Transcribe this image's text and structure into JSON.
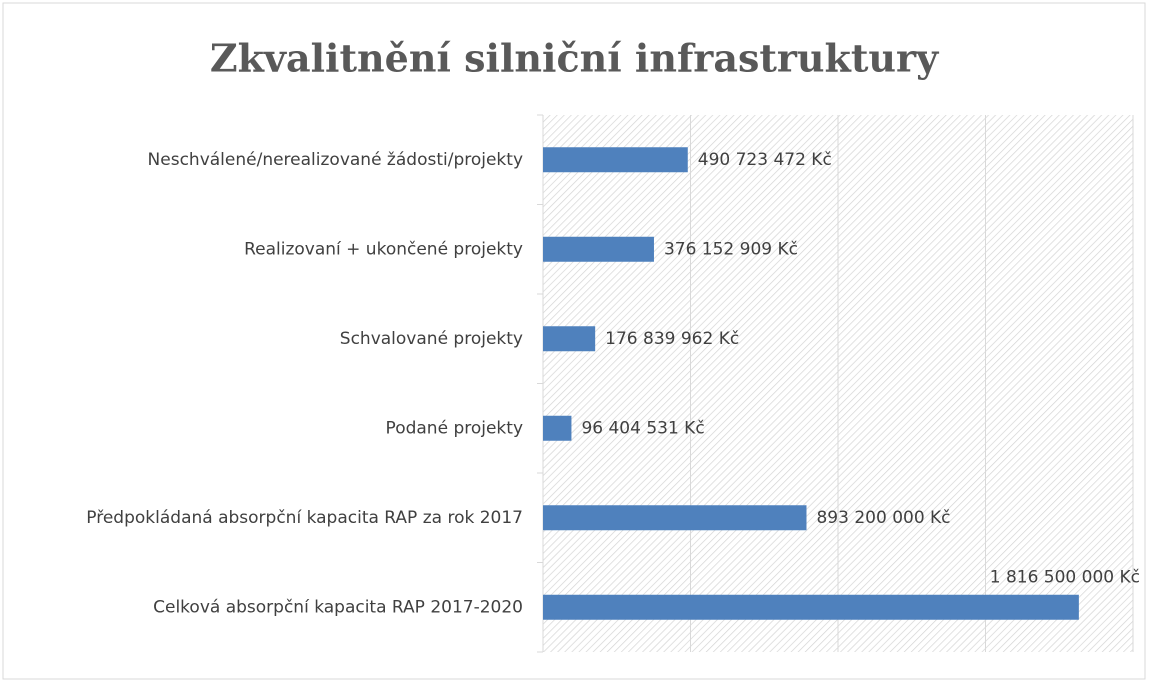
{
  "chart_data": {
    "type": "bar",
    "orientation": "horizontal",
    "title": "Zkvalitnění silniční infrastruktury",
    "categories": [
      "Neschválené/nerealizované žádosti/projekty",
      "Realizovaní + ukončené projekty",
      "Schvalované projekty",
      "Podané projekty",
      "Předpokládaná absorpční kapacita RAP za rok 2017",
      "Celková absorpční kapacita RAP 2017-2020"
    ],
    "values": [
      490723472,
      376152909,
      176839962,
      96404531,
      893200000,
      1816500000
    ],
    "value_labels": [
      "490 723 472 Kč",
      "376 152 909 Kč",
      "176 839 962 Kč",
      "96 404 531 Kč",
      "893 200 000 Kč",
      "1 816 500 000 Kč"
    ],
    "color": "#4f81bd",
    "xlim": [
      0,
      2000000000
    ],
    "xticks": [
      0,
      500000000,
      1000000000,
      1500000000,
      2000000000
    ],
    "grid": true
  }
}
